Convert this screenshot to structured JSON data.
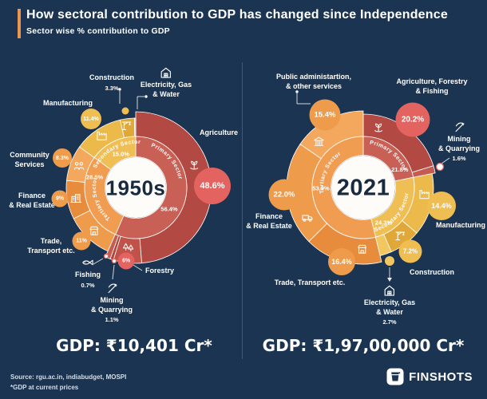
{
  "header": {
    "title": "How sectoral contribution to GDP has changed since Independence",
    "subtitle": "Sector wise % contribution to GDP"
  },
  "colors": {
    "background": "#1B3451",
    "accent_bar": "#E8954F",
    "badge_pink": "#E2635F",
    "badge_gold": "#EFBE52",
    "badge_orange": "#EE9B4B",
    "center_text": "#172A40",
    "white": "#FFFFFF"
  },
  "chart_data": [
    {
      "type": "pie",
      "variant": "double-ring donut",
      "title": "1950s",
      "center_label": "1950s",
      "gdp_label": "GDP: ₹10,401 Cr*",
      "sectors": [
        {
          "name": "Primary Sector",
          "value": 56.4,
          "pct_label": "56.4%",
          "color": "#C96055"
        },
        {
          "name": "Tertiary Sector",
          "value": 28.5,
          "pct_label": "28.5%",
          "color": "#F09D52"
        },
        {
          "name": "Secondary Sector",
          "value": 15.0,
          "pct_label": "15.0%",
          "color": "#EFBF55"
        }
      ],
      "subsectors": [
        {
          "name": "Agriculture",
          "value": 48.6,
          "pct_label": "48.6%",
          "icon": "plant-icon",
          "group": "primary",
          "color": "#B24A43"
        },
        {
          "name": "Forestry",
          "value": 6.0,
          "pct_label": "6%",
          "icon": "trees-icon",
          "group": "primary",
          "color": "#C05249"
        },
        {
          "name": "Fishing",
          "value": 0.7,
          "pct_label": "0.7%",
          "icon": "fish-icon",
          "group": "primary",
          "color": "#AE453E"
        },
        {
          "name": "Mining & Quarrying",
          "value": 1.1,
          "pct_label": "1.1%",
          "icon": "pickaxe-icon",
          "group": "primary",
          "color": "#C65B51"
        },
        {
          "name": "Trade, Transport etc.",
          "value": 11.0,
          "pct_label": "11%",
          "icon": "shop-icon",
          "group": "tertiary",
          "color": "#EE9B4B"
        },
        {
          "name": "Finance & Real Estate",
          "value": 9.0,
          "pct_label": "9%",
          "icon": "bank-building-icon",
          "group": "tertiary",
          "color": "#E78C3C"
        },
        {
          "name": "Community Services",
          "value": 8.3,
          "pct_label": "8.3%",
          "icon": "people-icon",
          "group": "tertiary",
          "color": "#F3A85E"
        },
        {
          "name": "Manufacturing",
          "value": 11.4,
          "pct_label": "11.4%",
          "icon": "factory-icon",
          "group": "secondary",
          "color": "#ECB94B"
        },
        {
          "name": "Construction",
          "value": 3.3,
          "pct_label": "3.3%",
          "icon": "crane-icon",
          "group": "secondary",
          "color": "#DFA838"
        },
        {
          "name": "Electricity, Gas & Water",
          "value": 0.3,
          "pct_label": "",
          "icon": "power-house-icon",
          "group": "secondary",
          "color": "#F2C75F"
        }
      ],
      "callouts": [
        {
          "lines": [
            "Construction"
          ]
        },
        {
          "lines": [
            "Electricity, Gas",
            "& Water"
          ]
        },
        {
          "lines": [
            "Manufacturing"
          ]
        },
        {
          "lines": [
            "Community",
            "Services"
          ]
        },
        {
          "lines": [
            "Finance",
            "& Real Estate"
          ]
        },
        {
          "lines": [
            "Trade,",
            "Transport etc."
          ]
        },
        {
          "lines": [
            "Fishing"
          ]
        },
        {
          "lines": [
            "Mining",
            "& Quarrying"
          ]
        },
        {
          "lines": [
            "Forestry"
          ]
        },
        {
          "lines": [
            "Agriculture"
          ]
        }
      ]
    },
    {
      "type": "pie",
      "variant": "double-ring donut",
      "title": "2021",
      "center_label": "2021",
      "gdp_label": "GDP: ₹1,97,00,000 Cr*",
      "sectors": [
        {
          "name": "Primary Sector",
          "value": 21.8,
          "pct_label": "21.8%",
          "color": "#C96055"
        },
        {
          "name": "Secondary Sector",
          "value": 24.3,
          "pct_label": "24.3%",
          "color": "#EFBF55"
        },
        {
          "name": "Tertiary Sector",
          "value": 53.9,
          "pct_label": "53.9%",
          "color": "#F09D52"
        }
      ],
      "subsectors": [
        {
          "name": "Agriculture, Forestry & Fishing",
          "value": 20.2,
          "pct_label": "20.2%",
          "icon": "plant-icon",
          "group": "primary",
          "color": "#B24A43"
        },
        {
          "name": "Mining & Quarrying",
          "value": 1.6,
          "pct_label": "1.6%",
          "icon": "pickaxe-icon",
          "group": "primary",
          "color": "#C65B51"
        },
        {
          "name": "Manufacturing",
          "value": 14.4,
          "pct_label": "14.4%",
          "icon": "factory-icon",
          "group": "secondary",
          "color": "#ECB94B"
        },
        {
          "name": "Construction",
          "value": 7.2,
          "pct_label": "7.2%",
          "icon": "crane-icon",
          "group": "secondary",
          "color": "#DFA838"
        },
        {
          "name": "Electricity, Gas & Water",
          "value": 2.7,
          "pct_label": "2.7%",
          "icon": "power-house-icon",
          "group": "secondary",
          "color": "#F2C75F"
        },
        {
          "name": "Trade, Transport etc.",
          "value": 16.4,
          "pct_label": "16.4%",
          "icon": "shop-icon",
          "group": "tertiary",
          "color": "#E78C3C"
        },
        {
          "name": "Finance & Real Estate",
          "value": 22.0,
          "pct_label": "22.0%",
          "icon": "truck-icon",
          "group": "tertiary",
          "color": "#EE9B4B"
        },
        {
          "name": "Public administartion, & other services",
          "value": 15.4,
          "pct_label": "15.4%",
          "icon": "govt-building-icon",
          "group": "tertiary",
          "color": "#F3A85E"
        }
      ],
      "callouts": [
        {
          "lines": [
            "Public administartion,",
            "& other services"
          ]
        },
        {
          "lines": [
            "Agriculture, Forestry",
            "& Fishing"
          ]
        },
        {
          "lines": [
            "Mining",
            "& Quarrying"
          ]
        },
        {
          "lines": [
            "Manufacturing"
          ]
        },
        {
          "lines": [
            "Construction"
          ]
        },
        {
          "lines": [
            "Electricity, Gas",
            "& Water"
          ]
        },
        {
          "lines": [
            "Trade, Transport etc."
          ]
        },
        {
          "lines": [
            "Finance",
            "& Real Estate"
          ]
        }
      ]
    }
  ],
  "footer": {
    "source_line_1": "Source: rgu.ac.in, indiabudget, MOSPI",
    "source_line_2": "*GDP at current prices",
    "brand": "FINSHOTS"
  }
}
